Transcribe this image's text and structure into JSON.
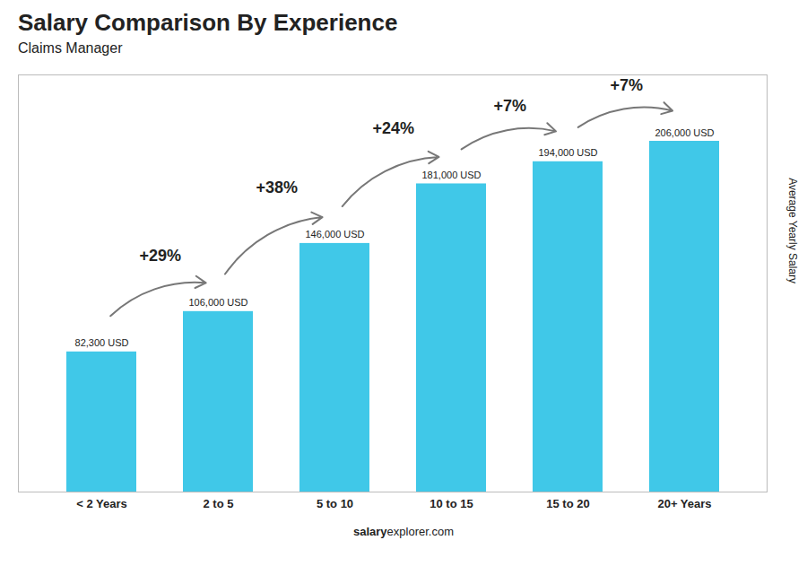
{
  "chart_data": {
    "type": "bar",
    "title": "Salary Comparison By Experience",
    "subtitle": "Claims Manager",
    "ylabel": "Average Yearly Salary",
    "footer_bold": "salary",
    "footer_normal": "explorer.com",
    "categories": [
      "< 2 Years",
      "2 to 5",
      "5 to 10",
      "10 to 15",
      "15 to 20",
      "20+ Years"
    ],
    "values": [
      82300,
      106000,
      146000,
      181000,
      194000,
      206000
    ],
    "value_labels": [
      "82,300 USD",
      "106,000 USD",
      "146,000 USD",
      "181,000 USD",
      "194,000 USD",
      "206,000 USD"
    ],
    "data_labels": true,
    "color": "#40c8e8",
    "ylim": [
      0,
      245000
    ],
    "tick_labels": "x",
    "grid": false,
    "annotations": [
      {
        "text": "+29%",
        "from": "< 2 Years",
        "to": "2 to 5"
      },
      {
        "text": "+38%",
        "from": "2 to 5",
        "to": "5 to 10"
      },
      {
        "text": "+24%",
        "from": "5 to 10",
        "to": "10 to 15"
      },
      {
        "text": "+7%",
        "from": "10 to 15",
        "to": "15 to 20"
      },
      {
        "text": "+7%",
        "from": "15 to 20",
        "to": "20+ Years"
      }
    ]
  }
}
